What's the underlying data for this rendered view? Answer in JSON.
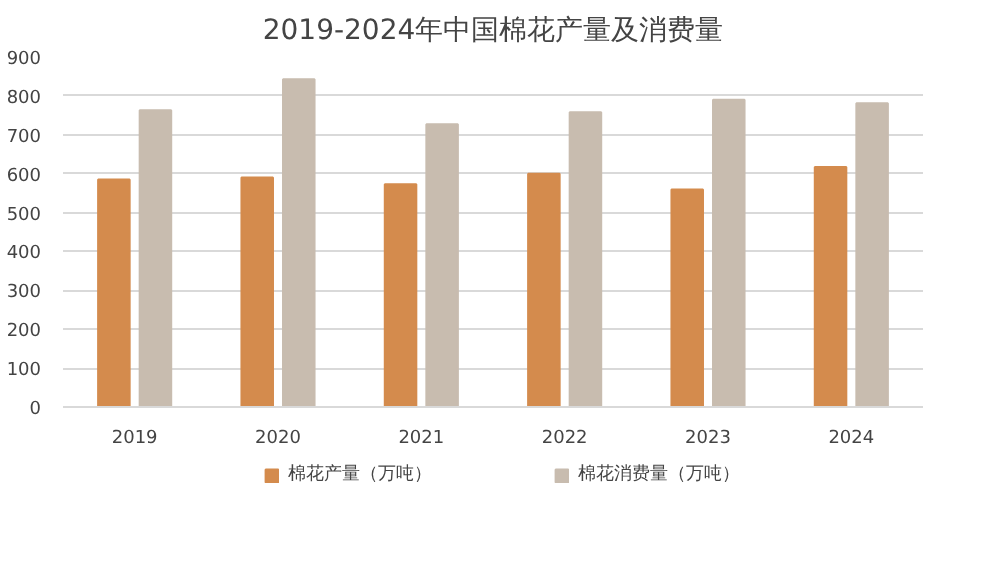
{
  "chart_data": {
    "type": "bar",
    "title": "2019-2024年中国棉花产量及消费量",
    "categories": [
      "2019",
      "2020",
      "2021",
      "2022",
      "2023",
      "2024"
    ],
    "series": [
      {
        "name": "棉花产量（万吨）",
        "color": "#d48b4d",
        "values": [
          585,
          590,
          573,
          600,
          559,
          617
        ]
      },
      {
        "name": "棉花消费量（万吨）",
        "color": "#c8bcaf",
        "values": [
          763,
          843,
          727,
          758,
          790,
          781
        ]
      }
    ],
    "ylim": [
      0,
      900
    ],
    "yticks": [
      0,
      100,
      200,
      300,
      400,
      500,
      600,
      700,
      800,
      900
    ],
    "grid": "y",
    "legend": "bottom"
  }
}
